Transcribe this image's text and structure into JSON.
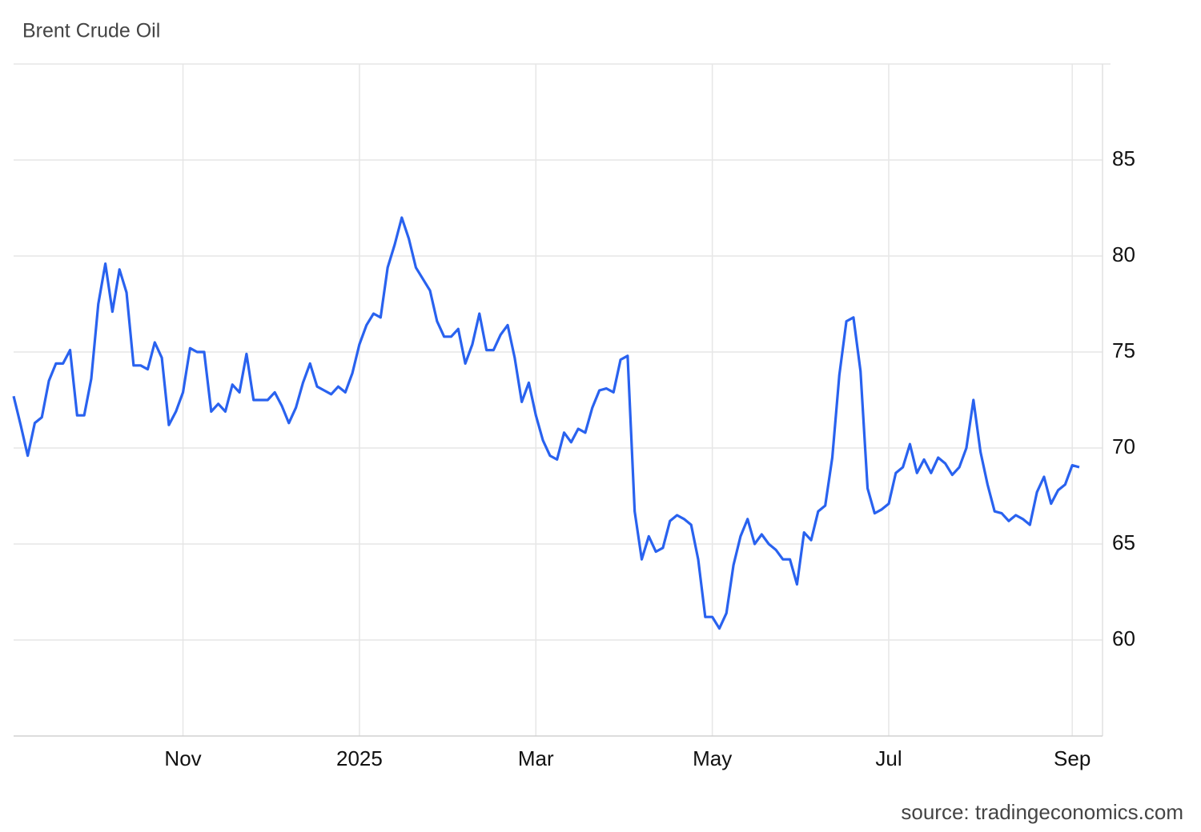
{
  "chart_data": {
    "type": "line",
    "title": "Brent Crude Oil",
    "source": "source: tradingeconomics.com",
    "categories": [
      null,
      null,
      null,
      null,
      null,
      null,
      null,
      null,
      null,
      null,
      null,
      null,
      null,
      null,
      null,
      null,
      null,
      null,
      null,
      null,
      null,
      null,
      null,
      null,
      "Nov",
      null,
      null,
      null,
      null,
      null,
      null,
      null,
      null,
      null,
      null,
      null,
      null,
      null,
      null,
      null,
      null,
      null,
      null,
      null,
      null,
      null,
      null,
      null,
      null,
      "2025",
      null,
      null,
      null,
      null,
      null,
      null,
      null,
      null,
      null,
      null,
      null,
      null,
      null,
      null,
      null,
      null,
      null,
      null,
      null,
      null,
      null,
      null,
      null,
      null,
      "Mar",
      null,
      null,
      null,
      null,
      null,
      null,
      null,
      null,
      null,
      null,
      null,
      null,
      null,
      null,
      null,
      null,
      null,
      null,
      null,
      null,
      null,
      null,
      null,
      null,
      "May",
      null,
      null,
      null,
      null,
      null,
      null,
      null,
      null,
      null,
      null,
      null,
      null,
      null,
      null,
      null,
      null,
      null,
      null,
      null,
      null,
      null,
      null,
      null,
      null,
      "Jul",
      null,
      null,
      null,
      null,
      null,
      null,
      null,
      null,
      null,
      null,
      null,
      null,
      null,
      null,
      null,
      null,
      null,
      null,
      null,
      null,
      null,
      null,
      null,
      null,
      null,
      "Sep",
      null
    ],
    "values": [
      72.7,
      71.2,
      69.6,
      71.3,
      71.6,
      73.5,
      74.4,
      74.4,
      75.1,
      71.7,
      71.7,
      73.6,
      77.5,
      79.6,
      77.1,
      79.3,
      78.1,
      74.3,
      74.3,
      74.1,
      75.5,
      74.7,
      71.2,
      71.9,
      72.9,
      75.2,
      75.0,
      75.0,
      71.9,
      72.3,
      71.9,
      73.3,
      72.9,
      74.9,
      72.5,
      72.5,
      72.5,
      72.9,
      72.2,
      71.3,
      72.1,
      73.4,
      74.4,
      73.2,
      73.0,
      72.8,
      73.2,
      72.9,
      73.9,
      75.4,
      76.4,
      77.0,
      76.8,
      79.4,
      80.6,
      82.0,
      80.9,
      79.4,
      78.8,
      78.2,
      76.6,
      75.8,
      75.8,
      76.2,
      74.4,
      75.4,
      77.0,
      75.1,
      75.1,
      75.9,
      76.4,
      74.7,
      72.4,
      73.4,
      71.7,
      70.4,
      69.6,
      69.4,
      70.8,
      70.3,
      71.0,
      70.8,
      72.1,
      73.0,
      73.1,
      72.9,
      74.6,
      74.8,
      66.7,
      64.2,
      65.4,
      64.6,
      64.8,
      66.2,
      66.5,
      66.3,
      66.0,
      64.2,
      61.2,
      61.2,
      60.6,
      61.4,
      63.9,
      65.4,
      66.3,
      65.0,
      65.5,
      65.0,
      64.7,
      64.2,
      64.2,
      62.9,
      65.6,
      65.2,
      66.7,
      67.0,
      69.5,
      73.8,
      76.6,
      76.8,
      74.0,
      67.9,
      66.6,
      66.8,
      67.1,
      68.7,
      69.0,
      70.2,
      68.7,
      69.4,
      68.7,
      69.5,
      69.2,
      68.6,
      69.0,
      70.0,
      72.5,
      69.8,
      68.1,
      66.7,
      66.6,
      66.2,
      66.5,
      66.3,
      66.0,
      67.7,
      68.5,
      67.1,
      67.8,
      68.1,
      69.1,
      69.0
    ],
    "color": "#2962ef",
    "ylim": [
      55,
      90
    ],
    "yticks": [
      60,
      65,
      70,
      75,
      80,
      85
    ],
    "grid": true
  }
}
